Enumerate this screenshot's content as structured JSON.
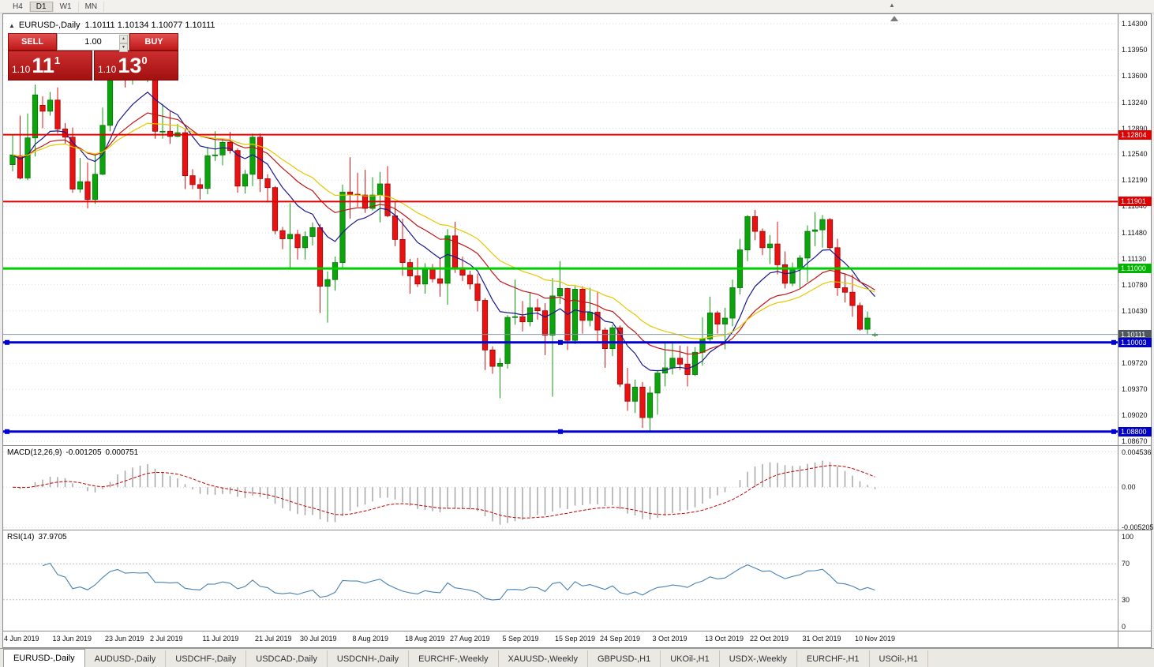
{
  "toolbar": {
    "periods": [
      "H4",
      "D1",
      "W1",
      "MN"
    ],
    "active_period": "D1"
  },
  "icons": {
    "collapse": "▲",
    "spin_up": "▲",
    "spin_down": "▼",
    "toolbar_marker": "▲"
  },
  "chart_header": {
    "symbol_period": "EURUSD-,Daily",
    "ohlc_text": "1.10111 1.10134 1.10077 1.10111"
  },
  "trade_panel": {
    "sell_label": "SELL",
    "buy_label": "BUY",
    "lot_size": "1.00",
    "sell_base": "1.10",
    "sell_pips": "11",
    "sell_frac": "1",
    "buy_base": "1.10",
    "buy_pips": "13",
    "buy_frac": "0"
  },
  "price_axis": {
    "labels": [
      "1.14300",
      "1.13950",
      "1.13600",
      "1.13240",
      "1.12890",
      "1.12540",
      "1.12190",
      "1.11840",
      "1.11480",
      "1.11130",
      "1.10780",
      "1.10430",
      "1.09720",
      "1.09370",
      "1.09020",
      "1.08670"
    ],
    "tags": [
      {
        "text": "1.12804",
        "color": "#E00000"
      },
      {
        "text": "1.11901",
        "color": "#E00000"
      },
      {
        "text": "1.11000",
        "color": "#00B400"
      },
      {
        "text": "1.10111",
        "color": "#4F565E"
      },
      {
        "text": "1.10003",
        "color": "#0000C8"
      },
      {
        "text": "1.08800",
        "color": "#0000C8"
      }
    ]
  },
  "levels": [
    {
      "price": 1.12804,
      "color": "#E00000",
      "width": 2,
      "handles": false
    },
    {
      "price": 1.11901,
      "color": "#E00000",
      "width": 2,
      "handles": false
    },
    {
      "price": 1.11,
      "color": "#00CC00",
      "width": 3,
      "handles": false
    },
    {
      "price": 1.10003,
      "color": "#0000D0",
      "width": 3,
      "handles": true
    },
    {
      "price": 1.088,
      "color": "#0000D0",
      "width": 3,
      "handles": true
    }
  ],
  "current_price": {
    "value": 1.10111,
    "line_color": "#8096A8"
  },
  "macd_panel": {
    "name": "MACD(12,26,9)",
    "value_main": "-0.001205",
    "value_signal": "0.000751",
    "axis": [
      "0.004536",
      "0.00",
      "-0.005205"
    ]
  },
  "rsi_panel": {
    "name": "RSI(14)",
    "value": "37.9705",
    "axis": [
      "100",
      "70",
      "30",
      "0"
    ]
  },
  "date_axis": {
    "ticks": [
      {
        "label": "4 Jun 2019",
        "index": 0
      },
      {
        "label": "13 Jun 2019",
        "index": 7
      },
      {
        "label": "23 Jun 2019",
        "index": 14
      },
      {
        "label": "2 Jul 2019",
        "index": 20
      },
      {
        "label": "11 Jul 2019",
        "index": 27
      },
      {
        "label": "21 Jul 2019",
        "index": 34
      },
      {
        "label": "30 Jul 2019",
        "index": 40
      },
      {
        "label": "8 Aug 2019",
        "index": 47
      },
      {
        "label": "18 Aug 2019",
        "index": 54
      },
      {
        "label": "27 Aug 2019",
        "index": 60
      },
      {
        "label": "5 Sep 2019",
        "index": 67
      },
      {
        "label": "15 Sep 2019",
        "index": 74
      },
      {
        "label": "24 Sep 2019",
        "index": 80
      },
      {
        "label": "3 Oct 2019",
        "index": 87
      },
      {
        "label": "13 Oct 2019",
        "index": 94
      },
      {
        "label": "22 Oct 2019",
        "index": 100
      },
      {
        "label": "31 Oct 2019",
        "index": 107
      },
      {
        "label": "10 Nov 2019",
        "index": 114
      }
    ]
  },
  "tabs": {
    "active_index": 0,
    "items": [
      "EURUSD-,Daily",
      "AUDUSD-,Daily",
      "USDCHF-,Daily",
      "USDCAD-,Daily",
      "USDCNH-,Daily",
      "EURCHF-,Weekly",
      "XAUUSD-,Weekly",
      "GBPUSD-,H1",
      "UKOil-,H1",
      "USDX-,Weekly",
      "EURCHF-,H1",
      "USOil-,H1"
    ]
  },
  "colors": {
    "up": "#0DA30D",
    "up_border": "#077407",
    "down": "#E81212",
    "down_border": "#A30000",
    "grid": "#DADADA",
    "macd_hist": "#A0A0A0",
    "macd_signal": "#C00000",
    "rsi_line": "#4682B4"
  },
  "chart_data": {
    "type": "candlestick",
    "title": "EURUSD-,Daily",
    "symbol": "EURUSD-",
    "timeframe": "Daily",
    "price_max": 1.14428,
    "price_min": 1.08617,
    "moving_averages": [
      {
        "method": "ema",
        "period": 10,
        "color": "#17178F"
      },
      {
        "method": "ema",
        "period": 20,
        "color": "#C21414"
      },
      {
        "method": "ema",
        "period": 30,
        "color": "#E6C800"
      }
    ],
    "macd": {
      "fast": 12,
      "slow": 26,
      "signal": 9,
      "scale_max": 0.0053,
      "scale_min": -0.00547
    },
    "rsi": {
      "period": 14,
      "levels": [
        70,
        30
      ]
    },
    "candles": [
      [
        1.124,
        1.128,
        1.1231,
        1.1253
      ],
      [
        1.1252,
        1.1306,
        1.122,
        1.1222
      ],
      [
        1.1222,
        1.1309,
        1.1219,
        1.1276
      ],
      [
        1.1276,
        1.1348,
        1.1251,
        1.1334
      ],
      [
        1.132,
        1.1332,
        1.1289,
        1.1312
      ],
      [
        1.1312,
        1.1338,
        1.1306,
        1.1327
      ],
      [
        1.1327,
        1.1344,
        1.1282,
        1.1288
      ],
      [
        1.1288,
        1.1296,
        1.1268,
        1.1277
      ],
      [
        1.1277,
        1.129,
        1.1202,
        1.1207
      ],
      [
        1.1207,
        1.1249,
        1.1202,
        1.1217
      ],
      [
        1.1217,
        1.1243,
        1.1181,
        1.1193
      ],
      [
        1.1193,
        1.1255,
        1.1187,
        1.1227
      ],
      [
        1.1227,
        1.1317,
        1.1226,
        1.1293
      ],
      [
        1.1293,
        1.1378,
        1.1285,
        1.1369
      ],
      [
        1.1369,
        1.1406,
        1.1362,
        1.14
      ],
      [
        1.14,
        1.1412,
        1.1344,
        1.1366
      ],
      [
        1.1366,
        1.139,
        1.1348,
        1.1373
      ],
      [
        1.1373,
        1.1391,
        1.136,
        1.1369
      ],
      [
        1.1369,
        1.1391,
        1.1351,
        1.1373
      ],
      [
        1.1373,
        1.1375,
        1.1275,
        1.1285
      ],
      [
        1.1285,
        1.1322,
        1.1275,
        1.1285
      ],
      [
        1.1285,
        1.1312,
        1.1268,
        1.1278
      ],
      [
        1.1278,
        1.1295,
        1.1277,
        1.1283
      ],
      [
        1.1283,
        1.1288,
        1.1207,
        1.1225
      ],
      [
        1.1225,
        1.1234,
        1.1207,
        1.1213
      ],
      [
        1.1213,
        1.1222,
        1.1193,
        1.1208
      ],
      [
        1.1208,
        1.1264,
        1.12,
        1.1252
      ],
      [
        1.1252,
        1.1285,
        1.1245,
        1.1253
      ],
      [
        1.1253,
        1.1275,
        1.1239,
        1.127
      ],
      [
        1.127,
        1.1284,
        1.1255,
        1.1259
      ],
      [
        1.1259,
        1.1262,
        1.1202,
        1.1211
      ],
      [
        1.1211,
        1.1233,
        1.1201,
        1.1227
      ],
      [
        1.1227,
        1.1282,
        1.1211,
        1.1277
      ],
      [
        1.1277,
        1.1282,
        1.1203,
        1.1221
      ],
      [
        1.1221,
        1.1227,
        1.1189,
        1.1209
      ],
      [
        1.1209,
        1.1211,
        1.1146,
        1.1151
      ],
      [
        1.1151,
        1.1156,
        1.1126,
        1.114
      ],
      [
        1.114,
        1.1188,
        1.1101,
        1.1146
      ],
      [
        1.1146,
        1.1152,
        1.1112,
        1.1128
      ],
      [
        1.1128,
        1.115,
        1.1112,
        1.1143
      ],
      [
        1.1143,
        1.1162,
        1.1131,
        1.1155
      ],
      [
        1.1155,
        1.116,
        1.104,
        1.1076
      ],
      [
        1.1076,
        1.1096,
        1.1027,
        1.1085
      ],
      [
        1.1085,
        1.1116,
        1.107,
        1.1108
      ],
      [
        1.1108,
        1.1213,
        1.1101,
        1.1203
      ],
      [
        1.1203,
        1.125,
        1.1167,
        1.12
      ],
      [
        1.12,
        1.1229,
        1.1183,
        1.1199
      ],
      [
        1.1199,
        1.1233,
        1.1175,
        1.1181
      ],
      [
        1.1181,
        1.1223,
        1.1178,
        1.1199
      ],
      [
        1.1199,
        1.123,
        1.1162,
        1.1214
      ],
      [
        1.1214,
        1.1238,
        1.1169,
        1.1171
      ],
      [
        1.1171,
        1.119,
        1.113,
        1.1139
      ],
      [
        1.1139,
        1.1167,
        1.109,
        1.1108
      ],
      [
        1.1108,
        1.1113,
        1.1066,
        1.109
      ],
      [
        1.109,
        1.1114,
        1.1075,
        1.1079
      ],
      [
        1.1079,
        1.1107,
        1.1066,
        1.1099
      ],
      [
        1.1099,
        1.1106,
        1.1081,
        1.1086
      ],
      [
        1.1086,
        1.1113,
        1.1062,
        1.108
      ],
      [
        1.108,
        1.1153,
        1.1051,
        1.1144
      ],
      [
        1.1144,
        1.1163,
        1.1094,
        1.1101
      ],
      [
        1.1101,
        1.1116,
        1.1083,
        1.1091
      ],
      [
        1.1091,
        1.1097,
        1.1072,
        1.1079
      ],
      [
        1.1079,
        1.1093,
        1.1042,
        1.1057
      ],
      [
        1.1057,
        1.106,
        1.0963,
        1.099
      ],
      [
        1.099,
        1.0995,
        1.0958,
        1.0968
      ],
      [
        1.0968,
        1.0979,
        1.0925,
        1.0972
      ],
      [
        1.0972,
        1.1037,
        1.0965,
        1.1034
      ],
      [
        1.1034,
        1.1085,
        1.1024,
        1.1035
      ],
      [
        1.1035,
        1.1056,
        1.1015,
        1.1028
      ],
      [
        1.1028,
        1.1067,
        1.1022,
        1.1047
      ],
      [
        1.1047,
        1.1059,
        1.1031,
        1.1043
      ],
      [
        1.1043,
        1.1053,
        1.0983,
        1.101
      ],
      [
        1.101,
        1.1087,
        1.0927,
        1.1063
      ],
      [
        1.1063,
        1.111,
        1.1052,
        1.1073
      ],
      [
        1.1073,
        1.1074,
        1.099,
        1.1003
      ],
      [
        1.1003,
        1.1076,
        1.0998,
        1.1072
      ],
      [
        1.1072,
        1.1076,
        1.1012,
        1.103
      ],
      [
        1.103,
        1.1074,
        1.1022,
        1.1041
      ],
      [
        1.1041,
        1.1068,
        1.1,
        1.1017
      ],
      [
        1.1017,
        1.102,
        1.0966,
        1.0992
      ],
      [
        1.0992,
        1.1024,
        1.0982,
        1.102
      ],
      [
        1.102,
        1.1023,
        1.094,
        1.0944
      ],
      [
        1.0944,
        1.0966,
        1.0908,
        1.0921
      ],
      [
        1.0921,
        1.095,
        1.0905,
        1.094
      ],
      [
        1.094,
        1.0947,
        1.0885,
        1.0899
      ],
      [
        1.0899,
        1.0941,
        1.0879,
        1.0932
      ],
      [
        1.0932,
        1.0963,
        1.0903,
        1.0959
      ],
      [
        1.0959,
        1.0999,
        1.0941,
        1.0966
      ],
      [
        1.0966,
        1.0999,
        1.0957,
        1.0979
      ],
      [
        1.0979,
        1.0996,
        1.0963,
        1.0971
      ],
      [
        1.0971,
        1.0995,
        1.0941,
        1.0957
      ],
      [
        1.0957,
        1.0994,
        1.0955,
        1.0987
      ],
      [
        1.0987,
        1.1034,
        1.0969,
        1.1005
      ],
      [
        1.1005,
        1.1062,
        1.1002,
        1.104
      ],
      [
        1.104,
        1.1043,
        1.1012,
        1.1025
      ],
      [
        1.1025,
        1.1047,
        1.0991,
        1.1033
      ],
      [
        1.1033,
        1.1085,
        1.1022,
        1.1074
      ],
      [
        1.1074,
        1.114,
        1.1065,
        1.1125
      ],
      [
        1.1125,
        1.1172,
        1.111,
        1.117
      ],
      [
        1.117,
        1.1179,
        1.1138,
        1.115
      ],
      [
        1.115,
        1.1154,
        1.1118,
        1.1128
      ],
      [
        1.1128,
        1.1145,
        1.1106,
        1.1133
      ],
      [
        1.1133,
        1.1163,
        1.1092,
        1.1105
      ],
      [
        1.1105,
        1.1123,
        1.1073,
        1.108
      ],
      [
        1.108,
        1.1108,
        1.1076,
        1.1099
      ],
      [
        1.1099,
        1.1118,
        1.1073,
        1.1114
      ],
      [
        1.1114,
        1.1158,
        1.1082,
        1.115
      ],
      [
        1.115,
        1.1176,
        1.113,
        1.1152
      ],
      [
        1.1152,
        1.1172,
        1.1128,
        1.1166
      ],
      [
        1.1166,
        1.1168,
        1.1126,
        1.1128
      ],
      [
        1.1128,
        1.114,
        1.1063,
        1.1074
      ],
      [
        1.1074,
        1.1093,
        1.1054,
        1.1068
      ],
      [
        1.1068,
        1.1092,
        1.1035,
        1.105
      ],
      [
        1.105,
        1.1054,
        1.1016,
        1.1018
      ],
      [
        1.1018,
        1.1042,
        1.1011,
        1.1033
      ],
      [
        1.10111,
        1.10134,
        1.10077,
        1.10111
      ]
    ]
  }
}
